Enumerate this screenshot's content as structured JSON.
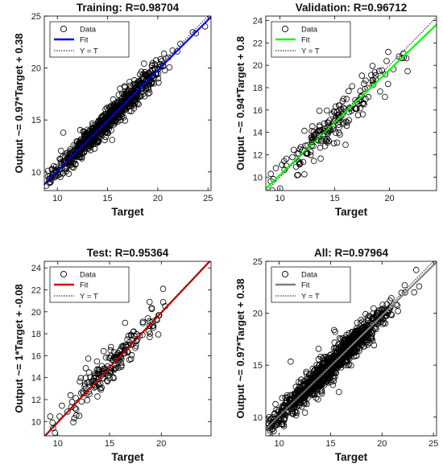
{
  "panels": [
    {
      "id": "training",
      "title": "Training: R=0.98704",
      "xlabel": "Target",
      "ylabel": "Output ~= 0.97*Target + 0.38",
      "xlim": [
        8.7,
        25.3
      ],
      "ylim": [
        8.2,
        25
      ],
      "xticks": [
        10,
        15,
        20,
        25
      ],
      "yticks": [
        10,
        15,
        20,
        25
      ],
      "fit_color": "#0000ff",
      "fit": {
        "slope": 0.97,
        "intercept": 0.38
      },
      "legend": [
        "Data",
        "Fit",
        "Y = T"
      ],
      "n_points": 900,
      "noise": 0.55,
      "seed": 11
    },
    {
      "id": "validation",
      "title": "Validation: R=0.96712",
      "xlabel": "Target",
      "ylabel": "Output ~= 0.94*Target + 0.8",
      "xlim": [
        8.7,
        24.3
      ],
      "ylim": [
        8.8,
        24.4
      ],
      "xticks": [
        10,
        15,
        20
      ],
      "yticks": [
        10,
        12,
        14,
        16,
        18,
        20,
        22,
        24
      ],
      "fit_color": "#00ff00",
      "fit": {
        "slope": 0.94,
        "intercept": 0.8
      },
      "legend": [
        "Data",
        "Fit",
        "Y = T"
      ],
      "n_points": 190,
      "noise": 0.8,
      "seed": 23
    },
    {
      "id": "test",
      "title": "Test: R=0.95364",
      "xlabel": "Target",
      "ylabel": "Output ~= 1*Target + -0.08",
      "xlim": [
        8.7,
        24.8
      ],
      "ylim": [
        8.7,
        24.6
      ],
      "xticks": [
        10,
        15,
        20
      ],
      "yticks": [
        10,
        12,
        14,
        16,
        18,
        20,
        22,
        24
      ],
      "fit_color": "#e00000",
      "fit": {
        "slope": 1.0,
        "intercept": -0.08
      },
      "legend": [
        "Data",
        "Fit",
        "Y = T"
      ],
      "n_points": 190,
      "noise": 0.85,
      "seed": 37
    },
    {
      "id": "all",
      "title": "All: R=0.97964",
      "xlabel": "Target",
      "ylabel": "Output ~= 0.97*Target + 0.38",
      "xlim": [
        8.7,
        25.3
      ],
      "ylim": [
        8.2,
        25
      ],
      "xticks": [
        10,
        15,
        20,
        25
      ],
      "yticks": [
        10,
        15,
        20,
        25
      ],
      "fit_color": "#808080",
      "fit": {
        "slope": 0.97,
        "intercept": 0.38
      },
      "legend": [
        "Data",
        "Fit",
        "Y = T"
      ],
      "n_points": 1250,
      "noise": 0.62,
      "seed": 53
    }
  ],
  "chart_data": [
    {
      "type": "scatter",
      "title": "Training: R=0.98704",
      "xlabel": "Target",
      "ylabel": "Output ~= 0.97*Target + 0.38",
      "xlim": [
        8.7,
        25.3
      ],
      "ylim": [
        8.2,
        25
      ],
      "series": [
        {
          "name": "Data"
        },
        {
          "name": "Fit",
          "slope": 0.97,
          "intercept": 0.38
        },
        {
          "name": "Y = T"
        }
      ]
    },
    {
      "type": "scatter",
      "title": "Validation: R=0.96712",
      "xlabel": "Target",
      "ylabel": "Output ~= 0.94*Target + 0.8",
      "xlim": [
        8.7,
        24.3
      ],
      "ylim": [
        8.8,
        24.4
      ],
      "series": [
        {
          "name": "Data"
        },
        {
          "name": "Fit",
          "slope": 0.94,
          "intercept": 0.8
        },
        {
          "name": "Y = T"
        }
      ]
    },
    {
      "type": "scatter",
      "title": "Test: R=0.95364",
      "xlabel": "Target",
      "ylabel": "Output ~= 1*Target + -0.08",
      "xlim": [
        8.7,
        24.8
      ],
      "ylim": [
        8.7,
        24.6
      ],
      "series": [
        {
          "name": "Data"
        },
        {
          "name": "Fit",
          "slope": 1.0,
          "intercept": -0.08
        },
        {
          "name": "Y = T"
        }
      ]
    },
    {
      "type": "scatter",
      "title": "All: R=0.97964",
      "xlabel": "Target",
      "ylabel": "Output ~= 0.97*Target + 0.38",
      "xlim": [
        8.7,
        25.3
      ],
      "ylim": [
        8.2,
        25
      ],
      "series": [
        {
          "name": "Data"
        },
        {
          "name": "Fit",
          "slope": 0.97,
          "intercept": 0.38
        },
        {
          "name": "Y = T"
        }
      ]
    }
  ]
}
